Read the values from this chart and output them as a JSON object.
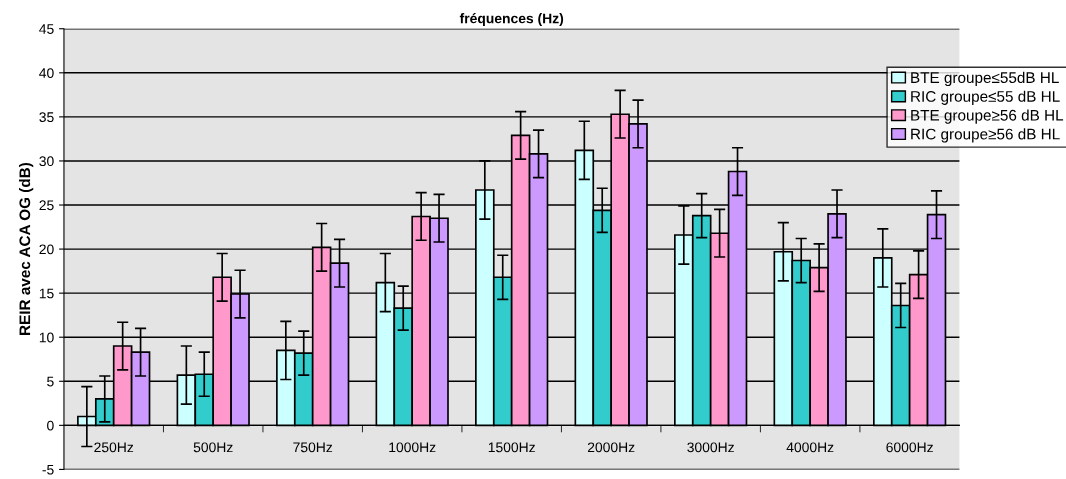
{
  "chart_data": {
    "type": "bar",
    "title": "fréquences (Hz)",
    "ylabel": "REIR avec ACA OG (dB)",
    "categories": [
      "250Hz",
      "500Hz",
      "750Hz",
      "1000Hz",
      "1500Hz",
      "2000Hz",
      "3000Hz",
      "4000Hz",
      "6000Hz"
    ],
    "series": [
      {
        "name": "BTE groupe≤55dB HL",
        "color": "#ccffff",
        "values": [
          1.0,
          5.7,
          8.5,
          16.2,
          26.7,
          31.2,
          21.6,
          19.7,
          19.0
        ],
        "errors": [
          3.4,
          3.3,
          3.3,
          3.3,
          3.3,
          3.3,
          3.3,
          3.3,
          3.3
        ]
      },
      {
        "name": "RIC groupe≤55 dB HL",
        "color": "#33cccc",
        "values": [
          3.0,
          5.8,
          8.2,
          13.3,
          16.8,
          24.4,
          23.8,
          18.7,
          13.6
        ],
        "errors": [
          2.6,
          2.5,
          2.5,
          2.5,
          2.5,
          2.5,
          2.5,
          2.5,
          2.5
        ]
      },
      {
        "name": "BTE groupe≥56 dB HL",
        "color": "#ff99cc",
        "values": [
          9.0,
          16.8,
          20.2,
          23.7,
          32.9,
          35.3,
          21.8,
          17.9,
          17.1
        ],
        "errors": [
          2.7,
          2.7,
          2.7,
          2.7,
          2.7,
          2.7,
          2.7,
          2.7,
          2.7
        ]
      },
      {
        "name": "RIC groupe≥56 dB HL",
        "color": "#cc99ff",
        "values": [
          8.3,
          14.9,
          18.4,
          23.5,
          30.8,
          34.2,
          28.8,
          24.0,
          23.9
        ],
        "errors": [
          2.7,
          2.7,
          2.7,
          2.7,
          2.7,
          2.7,
          2.7,
          2.7,
          2.7
        ]
      }
    ],
    "ylim": [
      -5,
      45
    ],
    "yticks": [
      -5,
      0,
      5,
      10,
      15,
      20,
      25,
      30,
      35,
      40,
      45
    ],
    "grid": "y",
    "legend": "top right"
  }
}
